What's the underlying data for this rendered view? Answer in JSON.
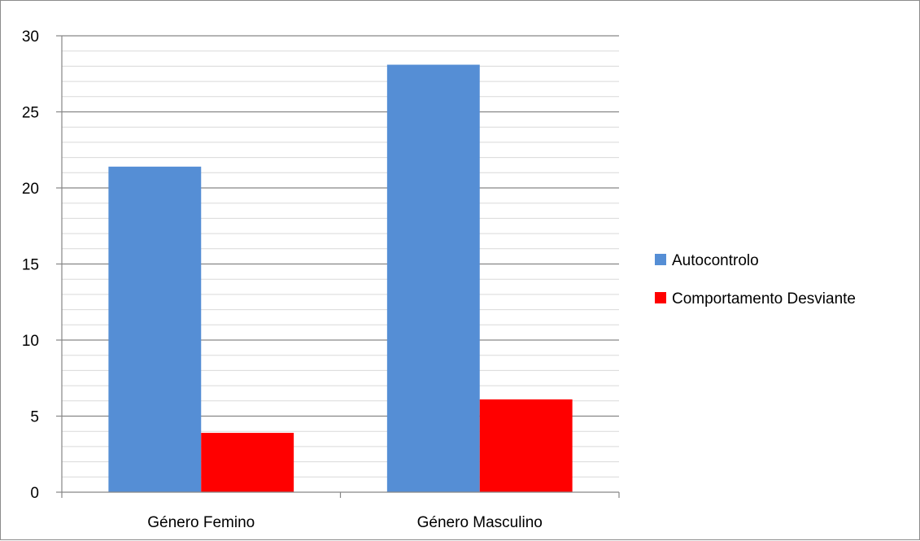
{
  "chart_data": {
    "type": "bar",
    "categories": [
      "Género Femino",
      "Género Masculino"
    ],
    "series": [
      {
        "name": "Autocontrolo",
        "values": [
          21.4,
          28.1
        ],
        "color": "#558ed5"
      },
      {
        "name": "Comportamento Desviante",
        "values": [
          3.9,
          6.1
        ],
        "color": "#ff0000"
      }
    ],
    "ylim": [
      0,
      30
    ],
    "yticks": [
      0,
      5,
      10,
      15,
      20,
      25,
      30
    ],
    "minor_step": 1,
    "grid": true,
    "legend_position": "right",
    "title": "",
    "xlabel": "",
    "ylabel": ""
  }
}
